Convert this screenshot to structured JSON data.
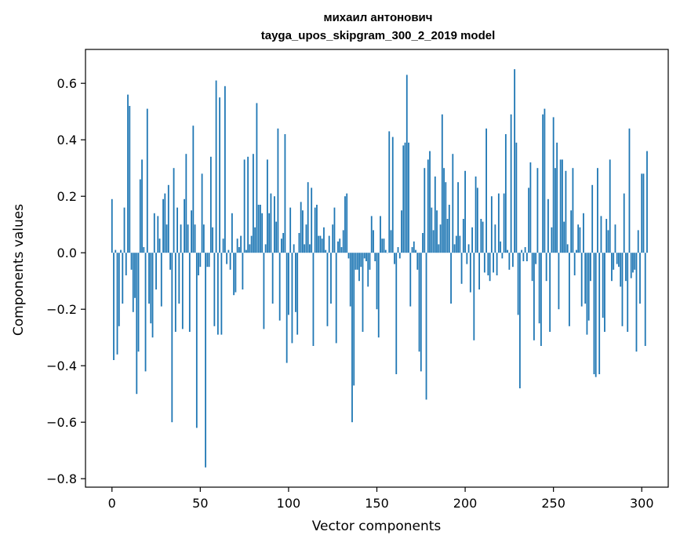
{
  "chart_data": {
    "type": "bar",
    "title_line1": "михаил антонович",
    "title_line2": "tayga_upos_skipgram_300_2_2019 model",
    "xlabel": "Vector components",
    "ylabel": "Components values",
    "xlim": [
      -15,
      315
    ],
    "ylim": [
      -0.83,
      0.72
    ],
    "xticks": [
      0,
      50,
      100,
      150,
      200,
      250,
      300
    ],
    "xtick_labels": [
      "0",
      "50",
      "100",
      "150",
      "200",
      "250",
      "300"
    ],
    "yticks": [
      -0.8,
      -0.6,
      -0.4,
      -0.2,
      0.0,
      0.2,
      0.4,
      0.6
    ],
    "ytick_labels": [
      "−0.8",
      "−0.6",
      "−0.4",
      "−0.2",
      "0.0",
      "0.2",
      "0.4",
      "0.6"
    ],
    "bar_color": "#1f77b4",
    "grid": false,
    "values": [
      0.19,
      -0.38,
      0.01,
      -0.36,
      -0.26,
      0.01,
      -0.18,
      0.16,
      -0.08,
      0.56,
      0.52,
      -0.06,
      -0.21,
      -0.16,
      -0.5,
      -0.35,
      0.26,
      0.33,
      0.02,
      -0.42,
      0.51,
      -0.18,
      -0.25,
      -0.3,
      0.14,
      -0.13,
      0.13,
      0.05,
      -0.19,
      0.19,
      0.21,
      0.1,
      0.24,
      -0.06,
      -0.6,
      0.3,
      -0.28,
      0.16,
      -0.18,
      0.1,
      -0.27,
      0.19,
      0.35,
      0.1,
      -0.28,
      0.15,
      0.45,
      0.1,
      -0.62,
      -0.08,
      -0.05,
      0.28,
      0.1,
      -0.76,
      -0.05,
      -0.05,
      0.34,
      0.09,
      -0.26,
      0.61,
      -0.29,
      0.55,
      -0.29,
      0.05,
      0.59,
      -0.04,
      0.01,
      -0.06,
      0.14,
      -0.15,
      -0.14,
      0.05,
      0.02,
      0.06,
      -0.13,
      0.33,
      0.01,
      0.34,
      0.03,
      0.06,
      0.35,
      0.09,
      0.53,
      0.17,
      0.17,
      0.14,
      -0.27,
      0.03,
      0.33,
      0.14,
      0.21,
      -0.18,
      0.2,
      0.11,
      0.44,
      -0.24,
      0.05,
      0.07,
      0.42,
      -0.39,
      -0.22,
      0.16,
      -0.32,
      0.03,
      -0.21,
      -0.29,
      0.07,
      0.18,
      0.15,
      0.03,
      0.1,
      0.25,
      0.03,
      0.23,
      -0.33,
      0.16,
      0.17,
      0.06,
      0.06,
      0.05,
      0.09,
      0.01,
      -0.26,
      0.06,
      -0.18,
      0.1,
      0.16,
      -0.32,
      0.04,
      0.05,
      0.02,
      0.08,
      0.2,
      0.21,
      -0.02,
      -0.19,
      -0.6,
      -0.47,
      -0.06,
      -0.06,
      -0.1,
      -0.05,
      -0.28,
      -0.02,
      -0.03,
      -0.12,
      -0.06,
      0.13,
      0.08,
      -0.03,
      -0.2,
      -0.3,
      0.13,
      0.05,
      0.05,
      0.01,
      0.0,
      0.43,
      0.08,
      0.41,
      -0.04,
      -0.43,
      0.02,
      -0.02,
      0.15,
      0.38,
      0.39,
      0.63,
      0.39,
      -0.19,
      0.02,
      0.04,
      0.01,
      -0.06,
      -0.35,
      -0.42,
      0.07,
      0.3,
      -0.52,
      0.33,
      0.36,
      0.16,
      0.08,
      0.27,
      0.15,
      0.03,
      0.1,
      0.49,
      0.3,
      0.25,
      0.12,
      0.17,
      -0.18,
      0.35,
      0.03,
      0.06,
      0.25,
      0.06,
      -0.11,
      0.12,
      0.29,
      -0.04,
      0.03,
      -0.14,
      0.09,
      -0.31,
      0.27,
      0.23,
      -0.13,
      0.12,
      0.11,
      -0.07,
      0.44,
      -0.08,
      -0.1,
      0.2,
      -0.07,
      0.1,
      -0.08,
      0.21,
      0.04,
      -0.02,
      0.21,
      0.42,
      0.01,
      -0.06,
      0.49,
      -0.05,
      0.65,
      0.39,
      -0.22,
      -0.48,
      0.01,
      -0.03,
      0.02,
      -0.03,
      0.23,
      0.32,
      -0.1,
      -0.31,
      -0.04,
      0.3,
      -0.25,
      -0.33,
      0.49,
      0.51,
      -0.1,
      0.19,
      -0.28,
      0.09,
      0.48,
      0.3,
      0.39,
      -0.2,
      0.33,
      0.33,
      0.11,
      0.29,
      0.03,
      -0.26,
      0.15,
      0.3,
      -0.08,
      0.01,
      0.1,
      0.09,
      -0.19,
      0.14,
      -0.18,
      -0.29,
      -0.24,
      -0.1,
      0.24,
      -0.43,
      -0.44,
      0.3,
      -0.43,
      0.13,
      -0.23,
      -0.28,
      0.12,
      0.08,
      0.33,
      -0.1,
      -0.06,
      0.1,
      -0.04,
      -0.05,
      -0.12,
      -0.26,
      0.21,
      -0.1,
      -0.28,
      0.44,
      -0.09,
      -0.07,
      -0.06,
      -0.35,
      0.08,
      -0.18,
      0.28,
      0.28,
      -0.33,
      0.36
    ]
  }
}
